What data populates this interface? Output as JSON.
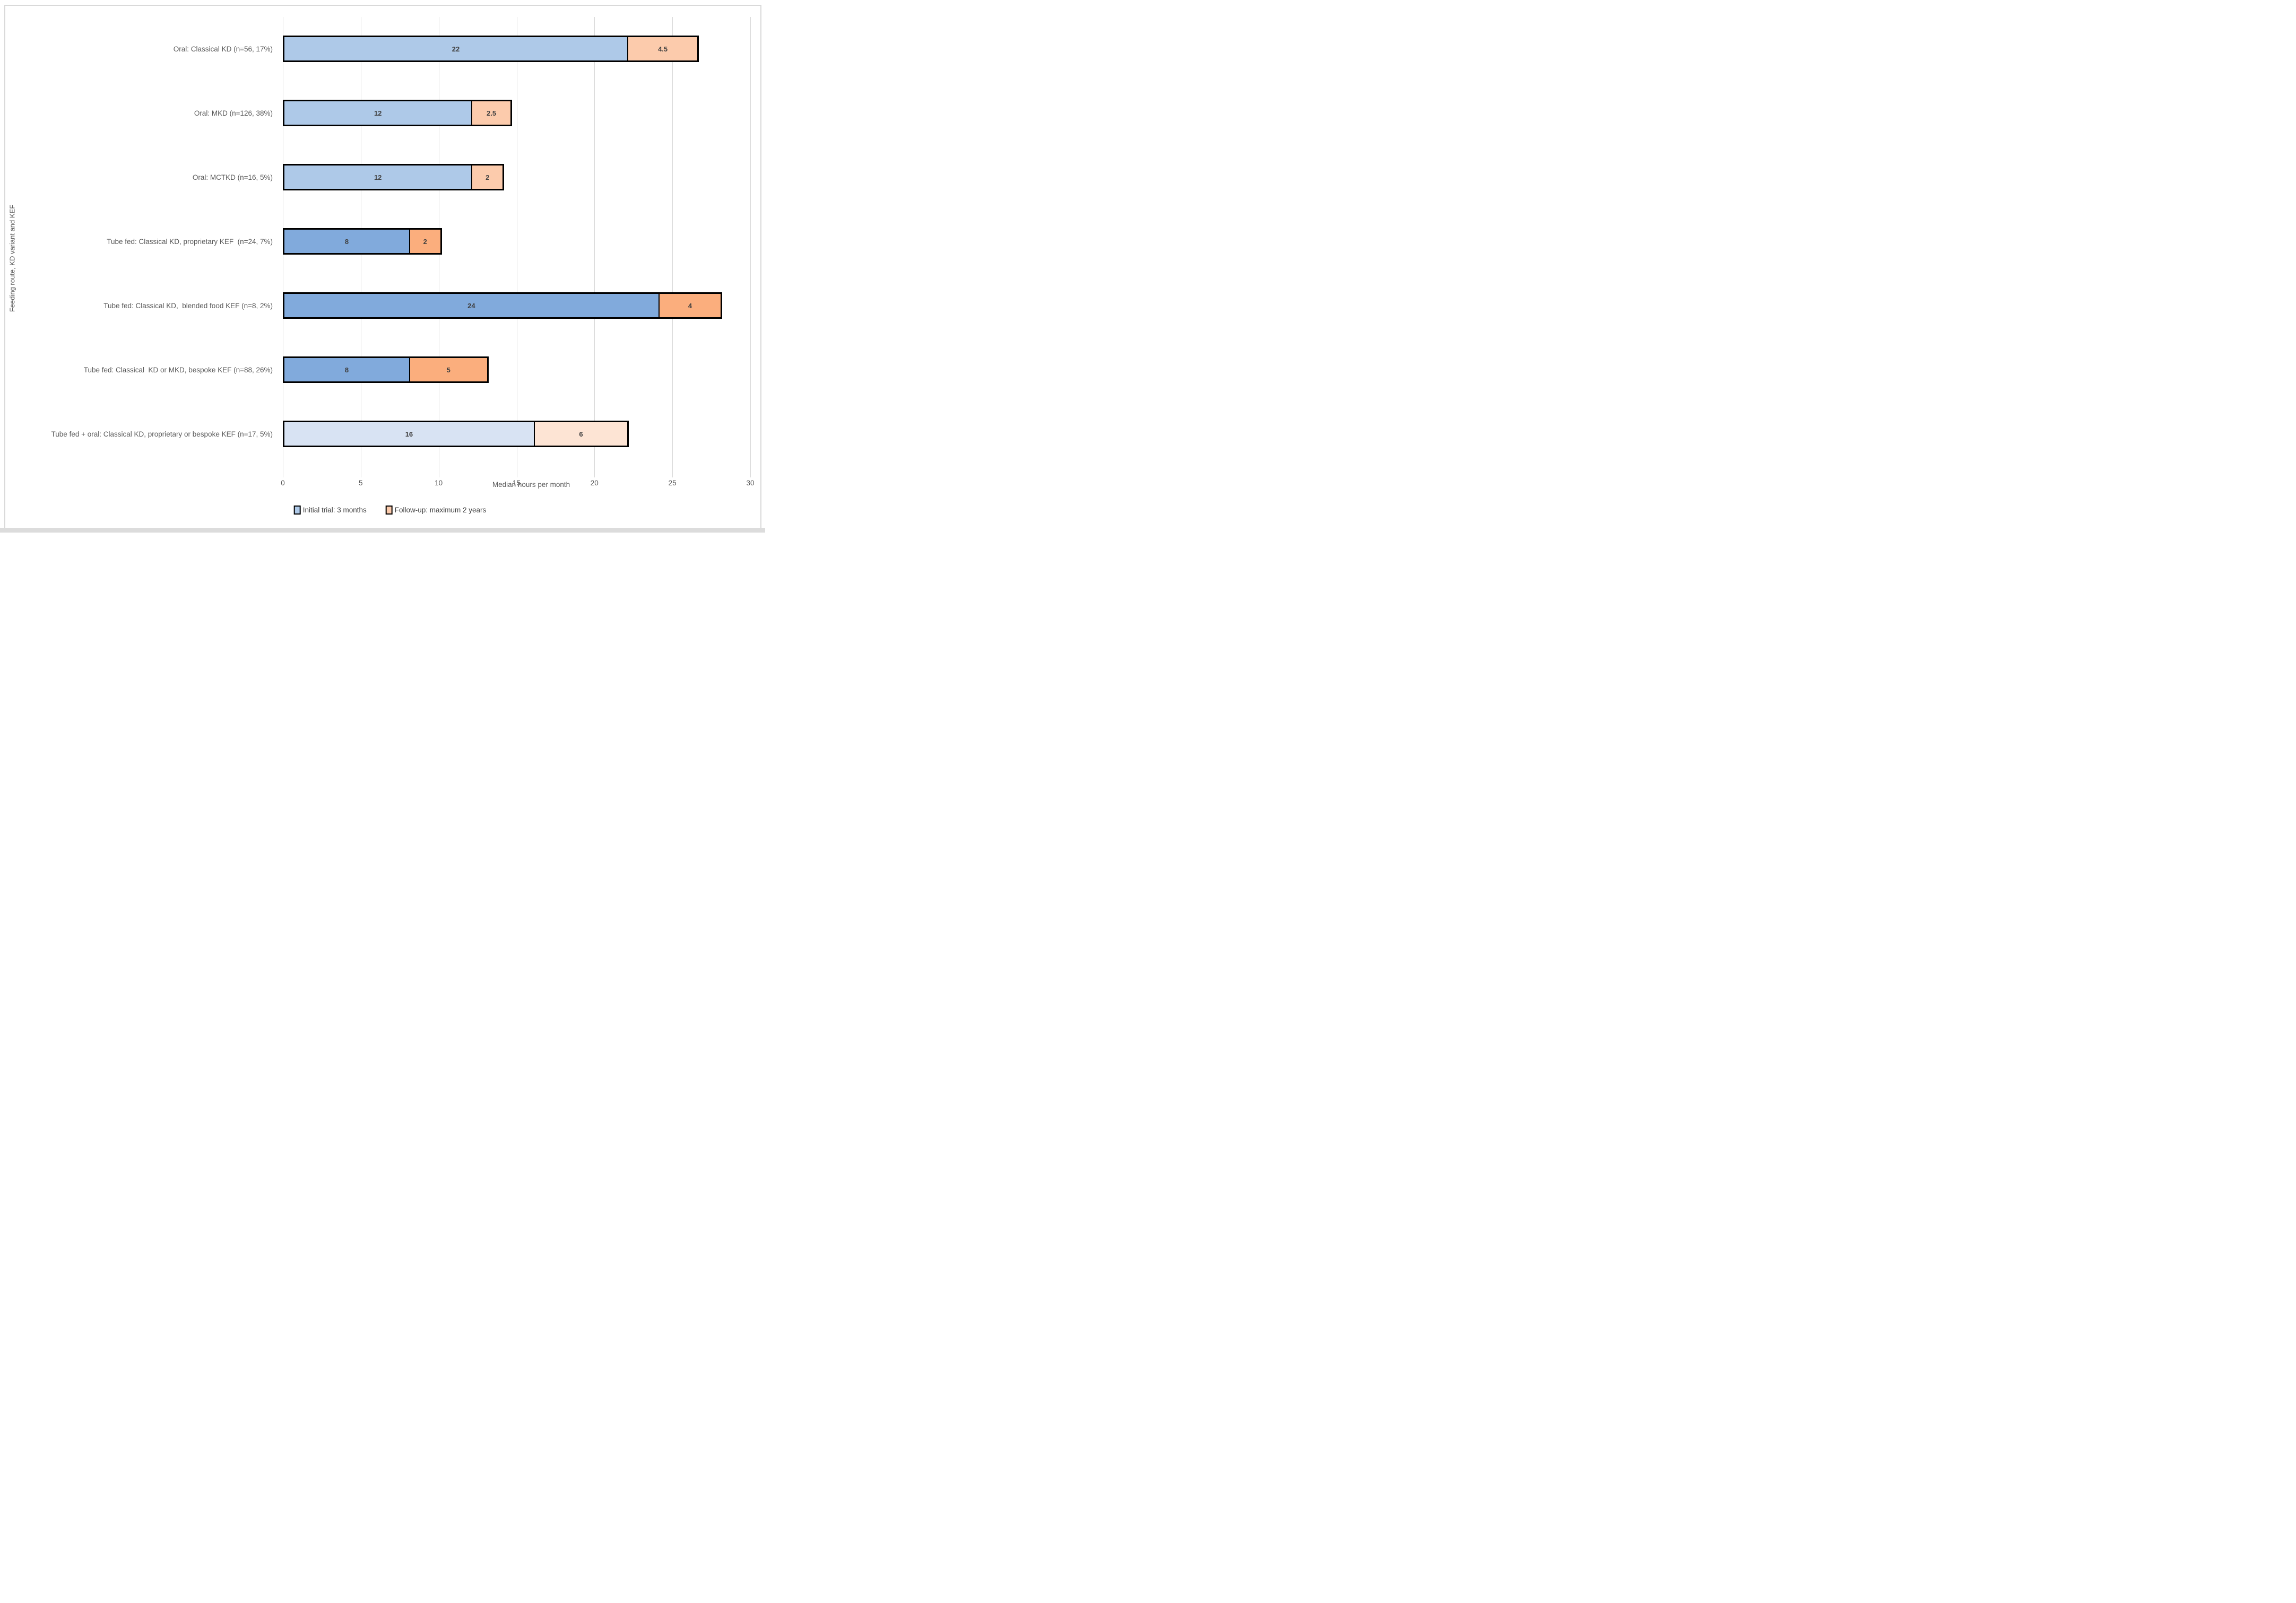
{
  "figure": {
    "frame_color": "#d9d9d9",
    "bottom_strip_color": "#dcdcdc",
    "background_color": "#ffffff"
  },
  "chart_data": {
    "type": "bar",
    "orientation": "horizontal",
    "stacked": true,
    "title": "",
    "xlabel": "Median hours per month",
    "ylabel": "Feeding route, KD variant and KEF",
    "xlim": [
      0,
      30
    ],
    "xticks": [
      0,
      5,
      10,
      15,
      20,
      25,
      30
    ],
    "grid": "vertical",
    "gridline_color": "#d9d9d9",
    "categories": [
      "Oral: Classical KD (n=56, 17%)",
      "Oral: MKD (n=126, 38%)",
      "Oral: MCTKD (n=16, 5%)",
      "Tube fed: Classical KD, proprietary KEF  (n=24, 7%)",
      "Tube fed: Classical KD,  blended food KEF (n=8, 2%)",
      "Tube fed: Classical  KD or MKD, bespoke KEF (n=88, 26%)",
      "Tube fed + oral: Classical KD, proprietary or bespoke KEF (n=17, 5%)"
    ],
    "series": [
      {
        "name": "Initial trial: 3 months",
        "values": [
          22,
          12,
          12,
          8,
          24,
          8,
          16
        ]
      },
      {
        "name": "Follow-up: maximum 2 years",
        "values": [
          4.5,
          2.5,
          2,
          2,
          4,
          5,
          6
        ]
      }
    ],
    "data_labels": [
      "22",
      "12",
      "12",
      "8",
      "24",
      "8",
      "16",
      "4.5",
      "2.5",
      "2",
      "2",
      "4",
      "5",
      "6"
    ],
    "bar_border_color": "#000000",
    "value_label_color": "#3f3f3f",
    "axis_text_color": "#595959",
    "segment_fill_colors": {
      "initial": [
        "#aec9e8",
        "#aec9e8",
        "#aec9e8",
        "#81aadc",
        "#81aadc",
        "#81aadc",
        "#d8e3f3"
      ],
      "followup": [
        "#fccbac",
        "#fccbac",
        "#fccbac",
        "#fbae7d",
        "#fbae7d",
        "#fbae7d",
        "#fde4d4"
      ]
    },
    "legend_position": "bottom",
    "legend": [
      {
        "label": "Initial trial: 3 months",
        "color": "#aec9e8"
      },
      {
        "label": "Follow-up: maximum 2 years",
        "color": "#fccbac"
      }
    ]
  }
}
